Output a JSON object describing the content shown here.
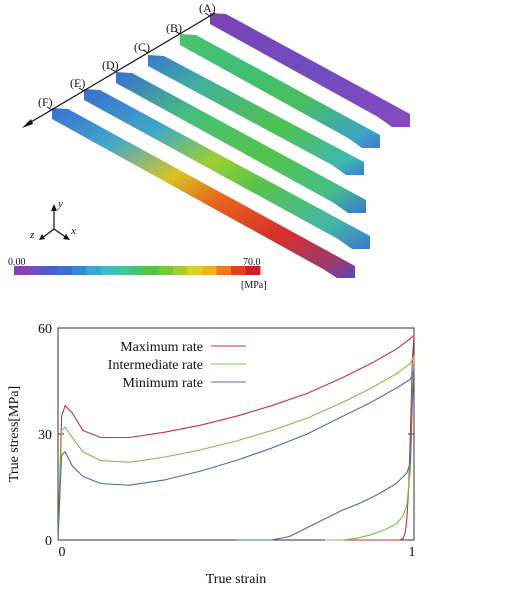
{
  "top_panel": {
    "specimen_labels": [
      "(A)",
      "(B)",
      "(C)",
      "(D)",
      "(E)",
      "(F)"
    ],
    "axes": {
      "y": "y",
      "z": "z",
      "x": "x"
    },
    "colorbar": {
      "min_label": "0.00",
      "max_label": "70.0",
      "unit": "[MPa]",
      "colors": [
        "#8a3fb0",
        "#6a52c4",
        "#4a5fd0",
        "#3b6fd2",
        "#3a88d0",
        "#3ba6cf",
        "#3fbdc0",
        "#43c49a",
        "#49c46f",
        "#55c34a",
        "#77c73a",
        "#a6cf2e",
        "#d6d323",
        "#f0b21f",
        "#ee7a1d",
        "#e5411d",
        "#cc2024"
      ]
    }
  },
  "chart_data": {
    "type": "line",
    "xlabel": "True strain",
    "ylabel": "True stress[MPa]",
    "xlim": [
      0,
      1
    ],
    "ylim": [
      0,
      60
    ],
    "xticks": [
      "0",
      "1"
    ],
    "yticks": [
      "0",
      "30",
      "60"
    ],
    "series": [
      {
        "name": "Maximum rate",
        "color": "#c8323a",
        "x": [
          0.0,
          0.01,
          0.02,
          0.04,
          0.07,
          0.12,
          0.2,
          0.3,
          0.4,
          0.5,
          0.6,
          0.7,
          0.8,
          0.88,
          0.95,
          0.99,
          1.0,
          0.995,
          0.99,
          0.985,
          0.98,
          0.975,
          0.97,
          0.96,
          0.9,
          0.8,
          0.75
        ],
        "y": [
          0,
          35,
          38,
          36,
          31,
          29,
          29,
          30.5,
          32.5,
          35,
          38,
          41.5,
          46,
          50,
          54,
          57,
          58,
          50,
          30,
          15,
          6,
          2,
          0.5,
          0,
          0,
          0,
          0
        ]
      },
      {
        "name": "Intermediate rate",
        "color": "#7cc04a",
        "x": [
          0.0,
          0.01,
          0.02,
          0.04,
          0.07,
          0.12,
          0.2,
          0.3,
          0.4,
          0.5,
          0.6,
          0.7,
          0.8,
          0.88,
          0.95,
          0.99,
          1.0,
          0.995,
          0.99,
          0.98,
          0.97,
          0.95,
          0.92,
          0.88,
          0.84,
          0.8,
          0.75
        ],
        "y": [
          0,
          31,
          32,
          29,
          25,
          22.5,
          22,
          23.5,
          25.5,
          28,
          31,
          34.5,
          39,
          43,
          47,
          50,
          52,
          40,
          20,
          10,
          7,
          4.5,
          3,
          1.5,
          0.5,
          0,
          0
        ]
      },
      {
        "name": "Minimum rate",
        "color": "#4f6aa8",
        "x": [
          0.0,
          0.01,
          0.02,
          0.04,
          0.07,
          0.12,
          0.2,
          0.3,
          0.4,
          0.5,
          0.6,
          0.7,
          0.8,
          0.88,
          0.95,
          0.99,
          1.0,
          0.995,
          0.99,
          0.98,
          0.95,
          0.9,
          0.85,
          0.8,
          0.75,
          0.7,
          0.65,
          0.6,
          0.55,
          0.5
        ],
        "y": [
          0,
          24,
          25,
          21,
          18,
          16,
          15.5,
          17,
          19.5,
          22.5,
          26,
          30,
          35,
          39,
          43,
          45.5,
          48,
          38,
          22,
          19,
          16,
          13,
          10.5,
          8.5,
          6,
          3.5,
          1,
          0,
          0,
          0
        ]
      }
    ],
    "legend": "top-left"
  }
}
